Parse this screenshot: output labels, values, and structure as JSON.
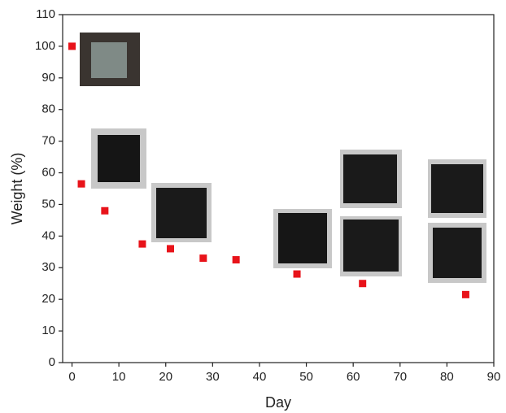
{
  "chart_data": {
    "type": "scatter",
    "xlabel": "Day",
    "ylabel": "Weight (%)",
    "x": [
      0,
      2,
      7,
      15,
      21,
      28,
      35,
      48,
      62,
      84
    ],
    "values": [
      100,
      56.5,
      48,
      37.5,
      36,
      33,
      32.5,
      28,
      25,
      21.5
    ],
    "color": "#e8131a",
    "xlim": [
      -2,
      90
    ],
    "xticks": [
      0,
      10,
      20,
      30,
      40,
      50,
      60,
      70,
      80,
      90
    ],
    "ylim": [
      0,
      110
    ],
    "yticks": [
      0,
      10,
      20,
      30,
      40,
      50,
      60,
      70,
      80,
      90,
      100,
      110
    ]
  }
}
